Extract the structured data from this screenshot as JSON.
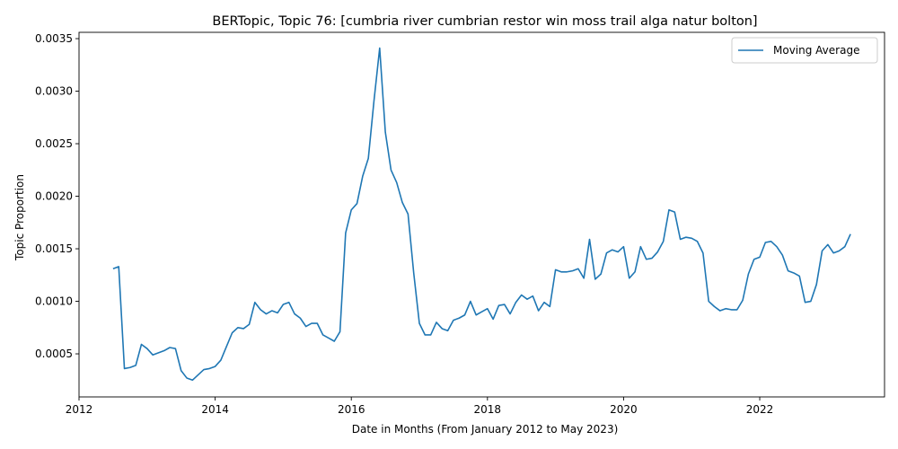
{
  "chart_data": {
    "type": "line",
    "title": "BERTopic, Topic 76: [cumbria river cumbrian restor win moss trail alga natur bolton]",
    "xlabel": "Date in Months (From January 2012 to May 2023)",
    "ylabel": "Topic Proportion",
    "xlim": [
      "2012-01",
      "2023-11"
    ],
    "ylim": [
      9e-05,
      0.00356
    ],
    "xticks": [
      {
        "date": "2012-01",
        "label": "2012"
      },
      {
        "date": "2014-01",
        "label": "2014"
      },
      {
        "date": "2016-01",
        "label": "2016"
      },
      {
        "date": "2018-01",
        "label": "2018"
      },
      {
        "date": "2020-01",
        "label": "2020"
      },
      {
        "date": "2022-01",
        "label": "2022"
      }
    ],
    "yticks": [
      {
        "value": 0.0005,
        "label": "0.0005"
      },
      {
        "value": 0.001,
        "label": "0.0010"
      },
      {
        "value": 0.0015,
        "label": "0.0015"
      },
      {
        "value": 0.002,
        "label": "0.0020"
      },
      {
        "value": 0.0025,
        "label": "0.0025"
      },
      {
        "value": 0.003,
        "label": "0.0030"
      },
      {
        "value": 0.0035,
        "label": "0.0035"
      }
    ],
    "grid": false,
    "legend": {
      "position": "upper-right",
      "entries": [
        "Moving Average"
      ]
    },
    "series": [
      {
        "name": "Moving Average",
        "color": "#1f77b4",
        "points": [
          [
            "2012-07",
            0.00131
          ],
          [
            "2012-08",
            0.00133
          ],
          [
            "2012-09",
            0.00036
          ],
          [
            "2012-10",
            0.00037
          ],
          [
            "2012-11",
            0.00039
          ],
          [
            "2012-12",
            0.00059
          ],
          [
            "2013-01",
            0.00055
          ],
          [
            "2013-02",
            0.00049
          ],
          [
            "2013-03",
            0.00051
          ],
          [
            "2013-04",
            0.00053
          ],
          [
            "2013-05",
            0.00056
          ],
          [
            "2013-06",
            0.00055
          ],
          [
            "2013-07",
            0.00034
          ],
          [
            "2013-08",
            0.00027
          ],
          [
            "2013-09",
            0.00025
          ],
          [
            "2013-10",
            0.0003
          ],
          [
            "2013-11",
            0.00035
          ],
          [
            "2013-12",
            0.00036
          ],
          [
            "2014-01",
            0.00038
          ],
          [
            "2014-02",
            0.00044
          ],
          [
            "2014-03",
            0.00057
          ],
          [
            "2014-04",
            0.0007
          ],
          [
            "2014-05",
            0.00075
          ],
          [
            "2014-06",
            0.00074
          ],
          [
            "2014-07",
            0.00078
          ],
          [
            "2014-08",
            0.00099
          ],
          [
            "2014-09",
            0.00092
          ],
          [
            "2014-10",
            0.00088
          ],
          [
            "2014-11",
            0.00091
          ],
          [
            "2014-12",
            0.00089
          ],
          [
            "2015-01",
            0.00097
          ],
          [
            "2015-02",
            0.00099
          ],
          [
            "2015-03",
            0.00088
          ],
          [
            "2015-04",
            0.00084
          ],
          [
            "2015-05",
            0.00076
          ],
          [
            "2015-06",
            0.00079
          ],
          [
            "2015-07",
            0.00079
          ],
          [
            "2015-08",
            0.00068
          ],
          [
            "2015-09",
            0.00065
          ],
          [
            "2015-10",
            0.00062
          ],
          [
            "2015-11",
            0.00071
          ],
          [
            "2015-12",
            0.00165
          ],
          [
            "2016-01",
            0.00187
          ],
          [
            "2016-02",
            0.00193
          ],
          [
            "2016-03",
            0.00219
          ],
          [
            "2016-04",
            0.00236
          ],
          [
            "2016-05",
            0.00291
          ],
          [
            "2016-06",
            0.00341
          ],
          [
            "2016-07",
            0.00261
          ],
          [
            "2016-08",
            0.00225
          ],
          [
            "2016-09",
            0.00213
          ],
          [
            "2016-10",
            0.00194
          ],
          [
            "2016-11",
            0.00183
          ],
          [
            "2016-12",
            0.00127
          ],
          [
            "2017-01",
            0.00079
          ],
          [
            "2017-02",
            0.00068
          ],
          [
            "2017-03",
            0.00068
          ],
          [
            "2017-04",
            0.0008
          ],
          [
            "2017-05",
            0.00074
          ],
          [
            "2017-06",
            0.00072
          ],
          [
            "2017-07",
            0.00082
          ],
          [
            "2017-08",
            0.00084
          ],
          [
            "2017-09",
            0.00087
          ],
          [
            "2017-10",
            0.001
          ],
          [
            "2017-11",
            0.00087
          ],
          [
            "2017-12",
            0.0009
          ],
          [
            "2018-01",
            0.00093
          ],
          [
            "2018-02",
            0.00083
          ],
          [
            "2018-03",
            0.00096
          ],
          [
            "2018-04",
            0.00097
          ],
          [
            "2018-05",
            0.00088
          ],
          [
            "2018-06",
            0.00099
          ],
          [
            "2018-07",
            0.00106
          ],
          [
            "2018-08",
            0.00102
          ],
          [
            "2018-09",
            0.00105
          ],
          [
            "2018-10",
            0.00091
          ],
          [
            "2018-11",
            0.00099
          ],
          [
            "2018-12",
            0.00095
          ],
          [
            "2019-01",
            0.0013
          ],
          [
            "2019-02",
            0.00128
          ],
          [
            "2019-03",
            0.00128
          ],
          [
            "2019-04",
            0.00129
          ],
          [
            "2019-05",
            0.00131
          ],
          [
            "2019-06",
            0.00122
          ],
          [
            "2019-07",
            0.00159
          ],
          [
            "2019-08",
            0.00121
          ],
          [
            "2019-09",
            0.00126
          ],
          [
            "2019-10",
            0.00146
          ],
          [
            "2019-11",
            0.00149
          ],
          [
            "2019-12",
            0.00147
          ],
          [
            "2020-01",
            0.00152
          ],
          [
            "2020-02",
            0.00122
          ],
          [
            "2020-03",
            0.00128
          ],
          [
            "2020-04",
            0.00152
          ],
          [
            "2020-05",
            0.0014
          ],
          [
            "2020-06",
            0.00141
          ],
          [
            "2020-07",
            0.00147
          ],
          [
            "2020-08",
            0.00157
          ],
          [
            "2020-09",
            0.00187
          ],
          [
            "2020-10",
            0.00185
          ],
          [
            "2020-11",
            0.00159
          ],
          [
            "2020-12",
            0.00161
          ],
          [
            "2021-01",
            0.0016
          ],
          [
            "2021-02",
            0.00157
          ],
          [
            "2021-03",
            0.00146
          ],
          [
            "2021-04",
            0.001
          ],
          [
            "2021-05",
            0.00095
          ],
          [
            "2021-06",
            0.00091
          ],
          [
            "2021-07",
            0.00093
          ],
          [
            "2021-08",
            0.00092
          ],
          [
            "2021-09",
            0.00092
          ],
          [
            "2021-10",
            0.00101
          ],
          [
            "2021-11",
            0.00126
          ],
          [
            "2021-12",
            0.0014
          ],
          [
            "2022-01",
            0.00142
          ],
          [
            "2022-02",
            0.00156
          ],
          [
            "2022-03",
            0.00157
          ],
          [
            "2022-04",
            0.00152
          ],
          [
            "2022-05",
            0.00144
          ],
          [
            "2022-06",
            0.00129
          ],
          [
            "2022-07",
            0.00127
          ],
          [
            "2022-08",
            0.00124
          ],
          [
            "2022-09",
            0.00099
          ],
          [
            "2022-10",
            0.001
          ],
          [
            "2022-11",
            0.00116
          ],
          [
            "2022-12",
            0.00148
          ],
          [
            "2023-01",
            0.00154
          ],
          [
            "2023-02",
            0.00146
          ],
          [
            "2023-03",
            0.00148
          ],
          [
            "2023-04",
            0.00152
          ],
          [
            "2023-05",
            0.00164
          ]
        ]
      }
    ]
  }
}
